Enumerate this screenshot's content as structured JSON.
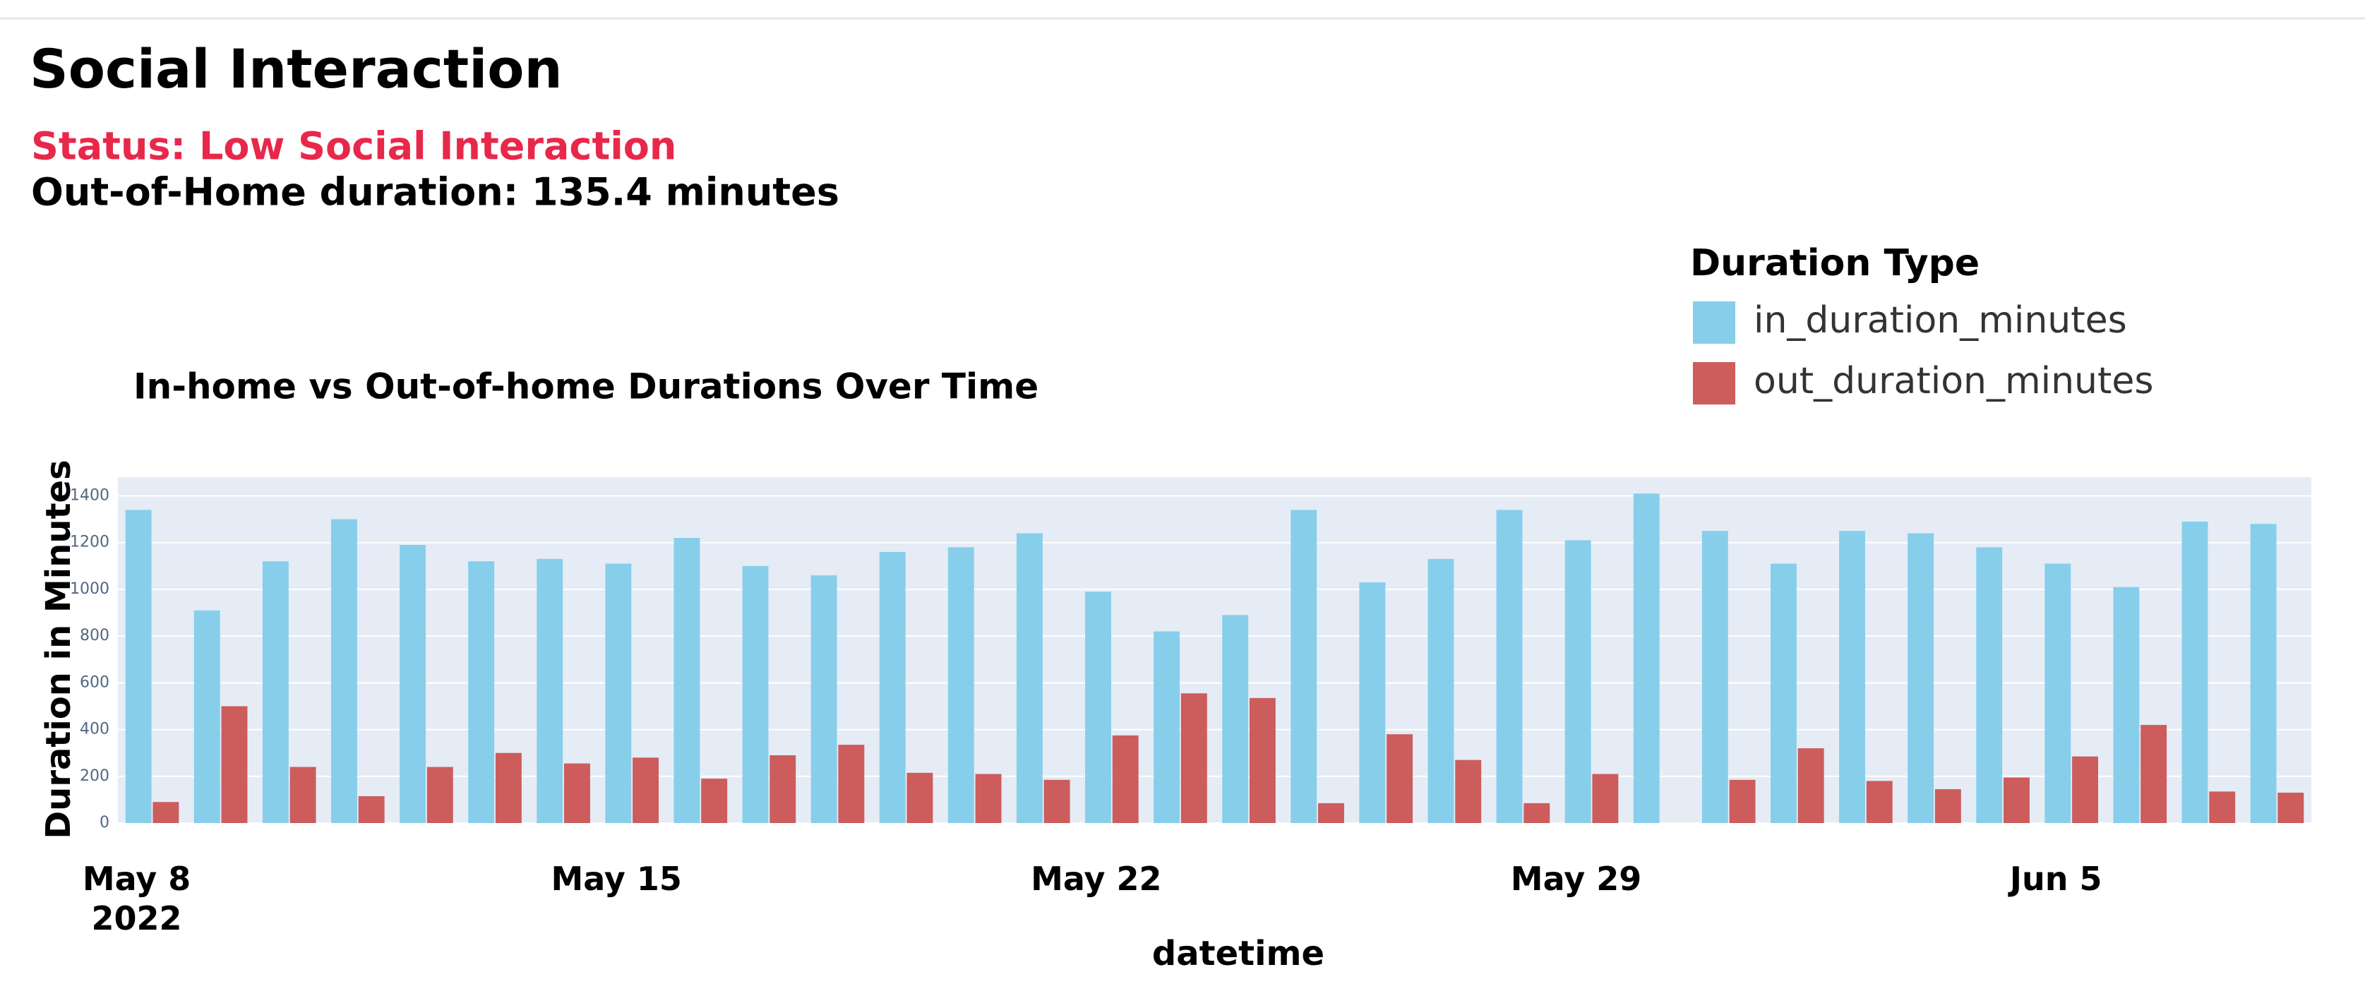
{
  "header": {
    "title": "Social Interaction",
    "status": "Status: Low Social Interaction",
    "summary": "Out-of-Home duration: 135.4 minutes"
  },
  "chart_data": {
    "type": "bar",
    "title": "In-home vs Out-of-home Durations Over Time",
    "x_label": "datetime",
    "y_label": "Duration in Minutes",
    "legend_title": "Duration Type",
    "legend": "top-right",
    "x": [
      "2022-05-08",
      "2022-05-09",
      "2022-05-10",
      "2022-05-11",
      "2022-05-12",
      "2022-05-13",
      "2022-05-14",
      "2022-05-15",
      "2022-05-16",
      "2022-05-17",
      "2022-05-18",
      "2022-05-19",
      "2022-05-20",
      "2022-05-21",
      "2022-05-22",
      "2022-05-23",
      "2022-05-24",
      "2022-05-25",
      "2022-05-26",
      "2022-05-27",
      "2022-05-28",
      "2022-05-29",
      "2022-05-30",
      "2022-05-31",
      "2022-06-01",
      "2022-06-02",
      "2022-06-03",
      "2022-06-04",
      "2022-06-05",
      "2022-06-06",
      "2022-06-07",
      "2022-06-08"
    ],
    "series": [
      {
        "name": "in_duration_minutes",
        "color": "#87ceeb",
        "values": [
          1340,
          910,
          1120,
          1300,
          1190,
          1120,
          1130,
          1110,
          1220,
          1100,
          1060,
          1160,
          1180,
          1240,
          990,
          820,
          890,
          1340,
          1030,
          1130,
          1340,
          1210,
          1410,
          1250,
          1110,
          1250,
          1240,
          1180,
          1110,
          1010,
          1290,
          1280
        ]
      },
      {
        "name": "out_duration_minutes",
        "color": "#cd5c5c",
        "values": [
          90,
          500,
          240,
          115,
          240,
          300,
          255,
          280,
          190,
          290,
          335,
          215,
          210,
          185,
          375,
          555,
          535,
          85,
          380,
          270,
          85,
          210,
          null,
          185,
          320,
          180,
          145,
          195,
          285,
          420,
          135,
          130
        ]
      }
    ],
    "xlim": [
      "2022-05-07T12:00:00",
      "2022-06-08T12:00:00"
    ],
    "xticks": [
      {
        "value": "2022-05-08",
        "label": "May 8\n2022"
      },
      {
        "value": "2022-05-15",
        "label": "May 15"
      },
      {
        "value": "2022-05-22",
        "label": "May 22"
      },
      {
        "value": "2022-05-29",
        "label": "May 29"
      },
      {
        "value": "2022-06-05",
        "label": "Jun 5"
      }
    ],
    "ylim": [
      0,
      1480
    ],
    "yticks": [
      0,
      200,
      400,
      600,
      800,
      1000,
      1200,
      1400
    ],
    "grid": true
  }
}
